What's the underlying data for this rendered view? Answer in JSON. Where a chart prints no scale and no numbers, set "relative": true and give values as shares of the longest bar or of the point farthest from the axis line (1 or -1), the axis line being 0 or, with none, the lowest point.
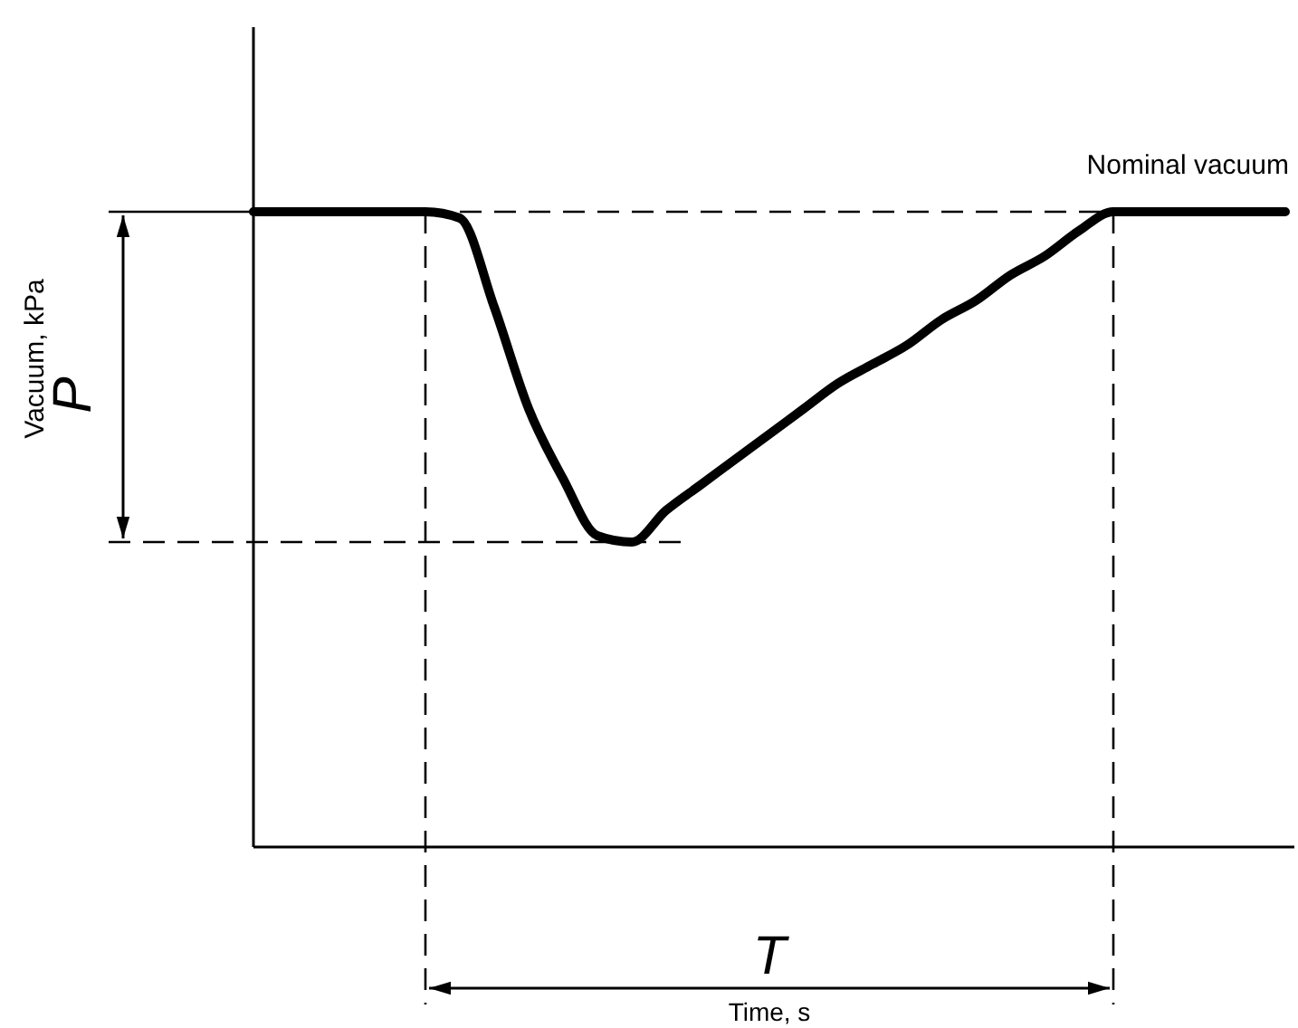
{
  "chart_data": {
    "type": "line",
    "relative": true,
    "categories": [
      null,
      null,
      null,
      null,
      null,
      null,
      null,
      null,
      null,
      null,
      null,
      null,
      null,
      null,
      null,
      null,
      null,
      null,
      null,
      null,
      null,
      null,
      null,
      null,
      null,
      null,
      null,
      null,
      null,
      null,
      null
    ],
    "series": [
      {
        "color": "#000000",
        "values": [
          1,
          1,
          1,
          1,
          1,
          1,
          0.99,
          0.85,
          0.69,
          0.58,
          0.49,
          0.48,
          0.53,
          0.57,
          0.61,
          0.65,
          0.69,
          0.73,
          0.76,
          0.79,
          0.83,
          0.86,
          0.9,
          0.93,
          0.97,
          1,
          1,
          1,
          1,
          1,
          1
        ]
      }
    ],
    "ref_lines": [
      {
        "axis": "y",
        "value": 0.48,
        "line_style": "dashed"
      }
    ],
    "annotations": [
      "P",
      "T",
      "Nominal vacuum",
      "Vacuum, kPa",
      "Time, s"
    ],
    "line_style": "solid"
  }
}
